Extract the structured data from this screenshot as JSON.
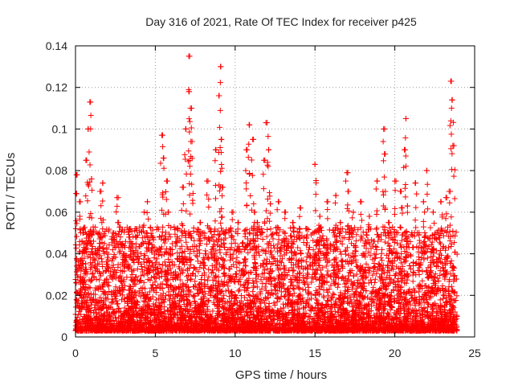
{
  "chart_data": {
    "type": "scatter",
    "title": "Day 316 of 2021, Rate Of TEC Index for receiver p425",
    "xlabel": "GPS time / hours",
    "ylabel": "ROTI / TECUs",
    "xlim": [
      0,
      25
    ],
    "ylim": [
      0,
      0.14
    ],
    "x_ticks": [
      "0",
      "5",
      "10",
      "15",
      "20",
      "25"
    ],
    "y_ticks": [
      "0",
      "0.02",
      "0.04",
      "0.06",
      "0.08",
      "0.1",
      "0.12",
      "0.14"
    ],
    "grid": true,
    "legend": "none",
    "marker": "+",
    "color": "#ff0000",
    "series": [
      {
        "x": [
          0.1,
          0.3,
          0.5,
          0.7,
          0.8,
          0.9,
          1.0,
          1.5,
          1.6,
          1.7,
          2.0,
          2.4,
          2.6,
          2.7,
          3.0,
          3.4,
          3.8,
          4.3,
          4.5,
          4.6,
          5.4,
          5.5,
          5.7,
          5.8,
          6.4,
          6.7,
          6.9,
          7.1,
          7.15,
          7.2,
          7.3,
          7.8,
          8.3,
          8.6,
          8.8,
          9.0,
          9.1,
          9.15,
          9.2,
          9.3,
          9.8,
          10.2,
          10.7,
          10.9,
          11.1,
          11.2,
          11.4,
          11.8,
          12.0,
          12.1,
          12.2,
          12.7,
          13.1,
          13.6,
          14.1,
          14.5,
          15.0,
          15.3,
          15.8,
          16.3,
          16.6,
          17.0,
          17.1,
          17.4,
          17.9,
          18.4,
          18.9,
          19.3,
          19.35,
          19.6,
          20.0,
          20.4,
          20.6,
          20.7,
          20.8,
          21.3,
          21.8,
          22.0,
          22.4,
          22.9,
          23.2,
          23.4,
          23.5,
          23.6,
          23.7
        ],
        "y": [
          0.078,
          0.065,
          0.05,
          0.085,
          0.1,
          0.113,
          0.076,
          0.045,
          0.07,
          0.074,
          0.035,
          0.05,
          0.067,
          0.055,
          0.04,
          0.048,
          0.052,
          0.06,
          0.065,
          0.045,
          0.097,
          0.086,
          0.075,
          0.06,
          0.052,
          0.072,
          0.1,
          0.118,
          0.135,
          0.11,
          0.094,
          0.055,
          0.075,
          0.048,
          0.09,
          0.116,
          0.13,
          0.095,
          0.072,
          0.05,
          0.06,
          0.055,
          0.09,
          0.102,
          0.095,
          0.06,
          0.055,
          0.085,
          0.103,
          0.09,
          0.064,
          0.065,
          0.06,
          0.055,
          0.062,
          0.052,
          0.083,
          0.058,
          0.065,
          0.068,
          0.055,
          0.079,
          0.07,
          0.06,
          0.065,
          0.058,
          0.075,
          0.1,
          0.088,
          0.055,
          0.075,
          0.07,
          0.09,
          0.105,
          0.063,
          0.074,
          0.065,
          0.08,
          0.06,
          0.065,
          0.067,
          0.07,
          0.123,
          0.114,
          0.092
        ]
      }
    ]
  }
}
